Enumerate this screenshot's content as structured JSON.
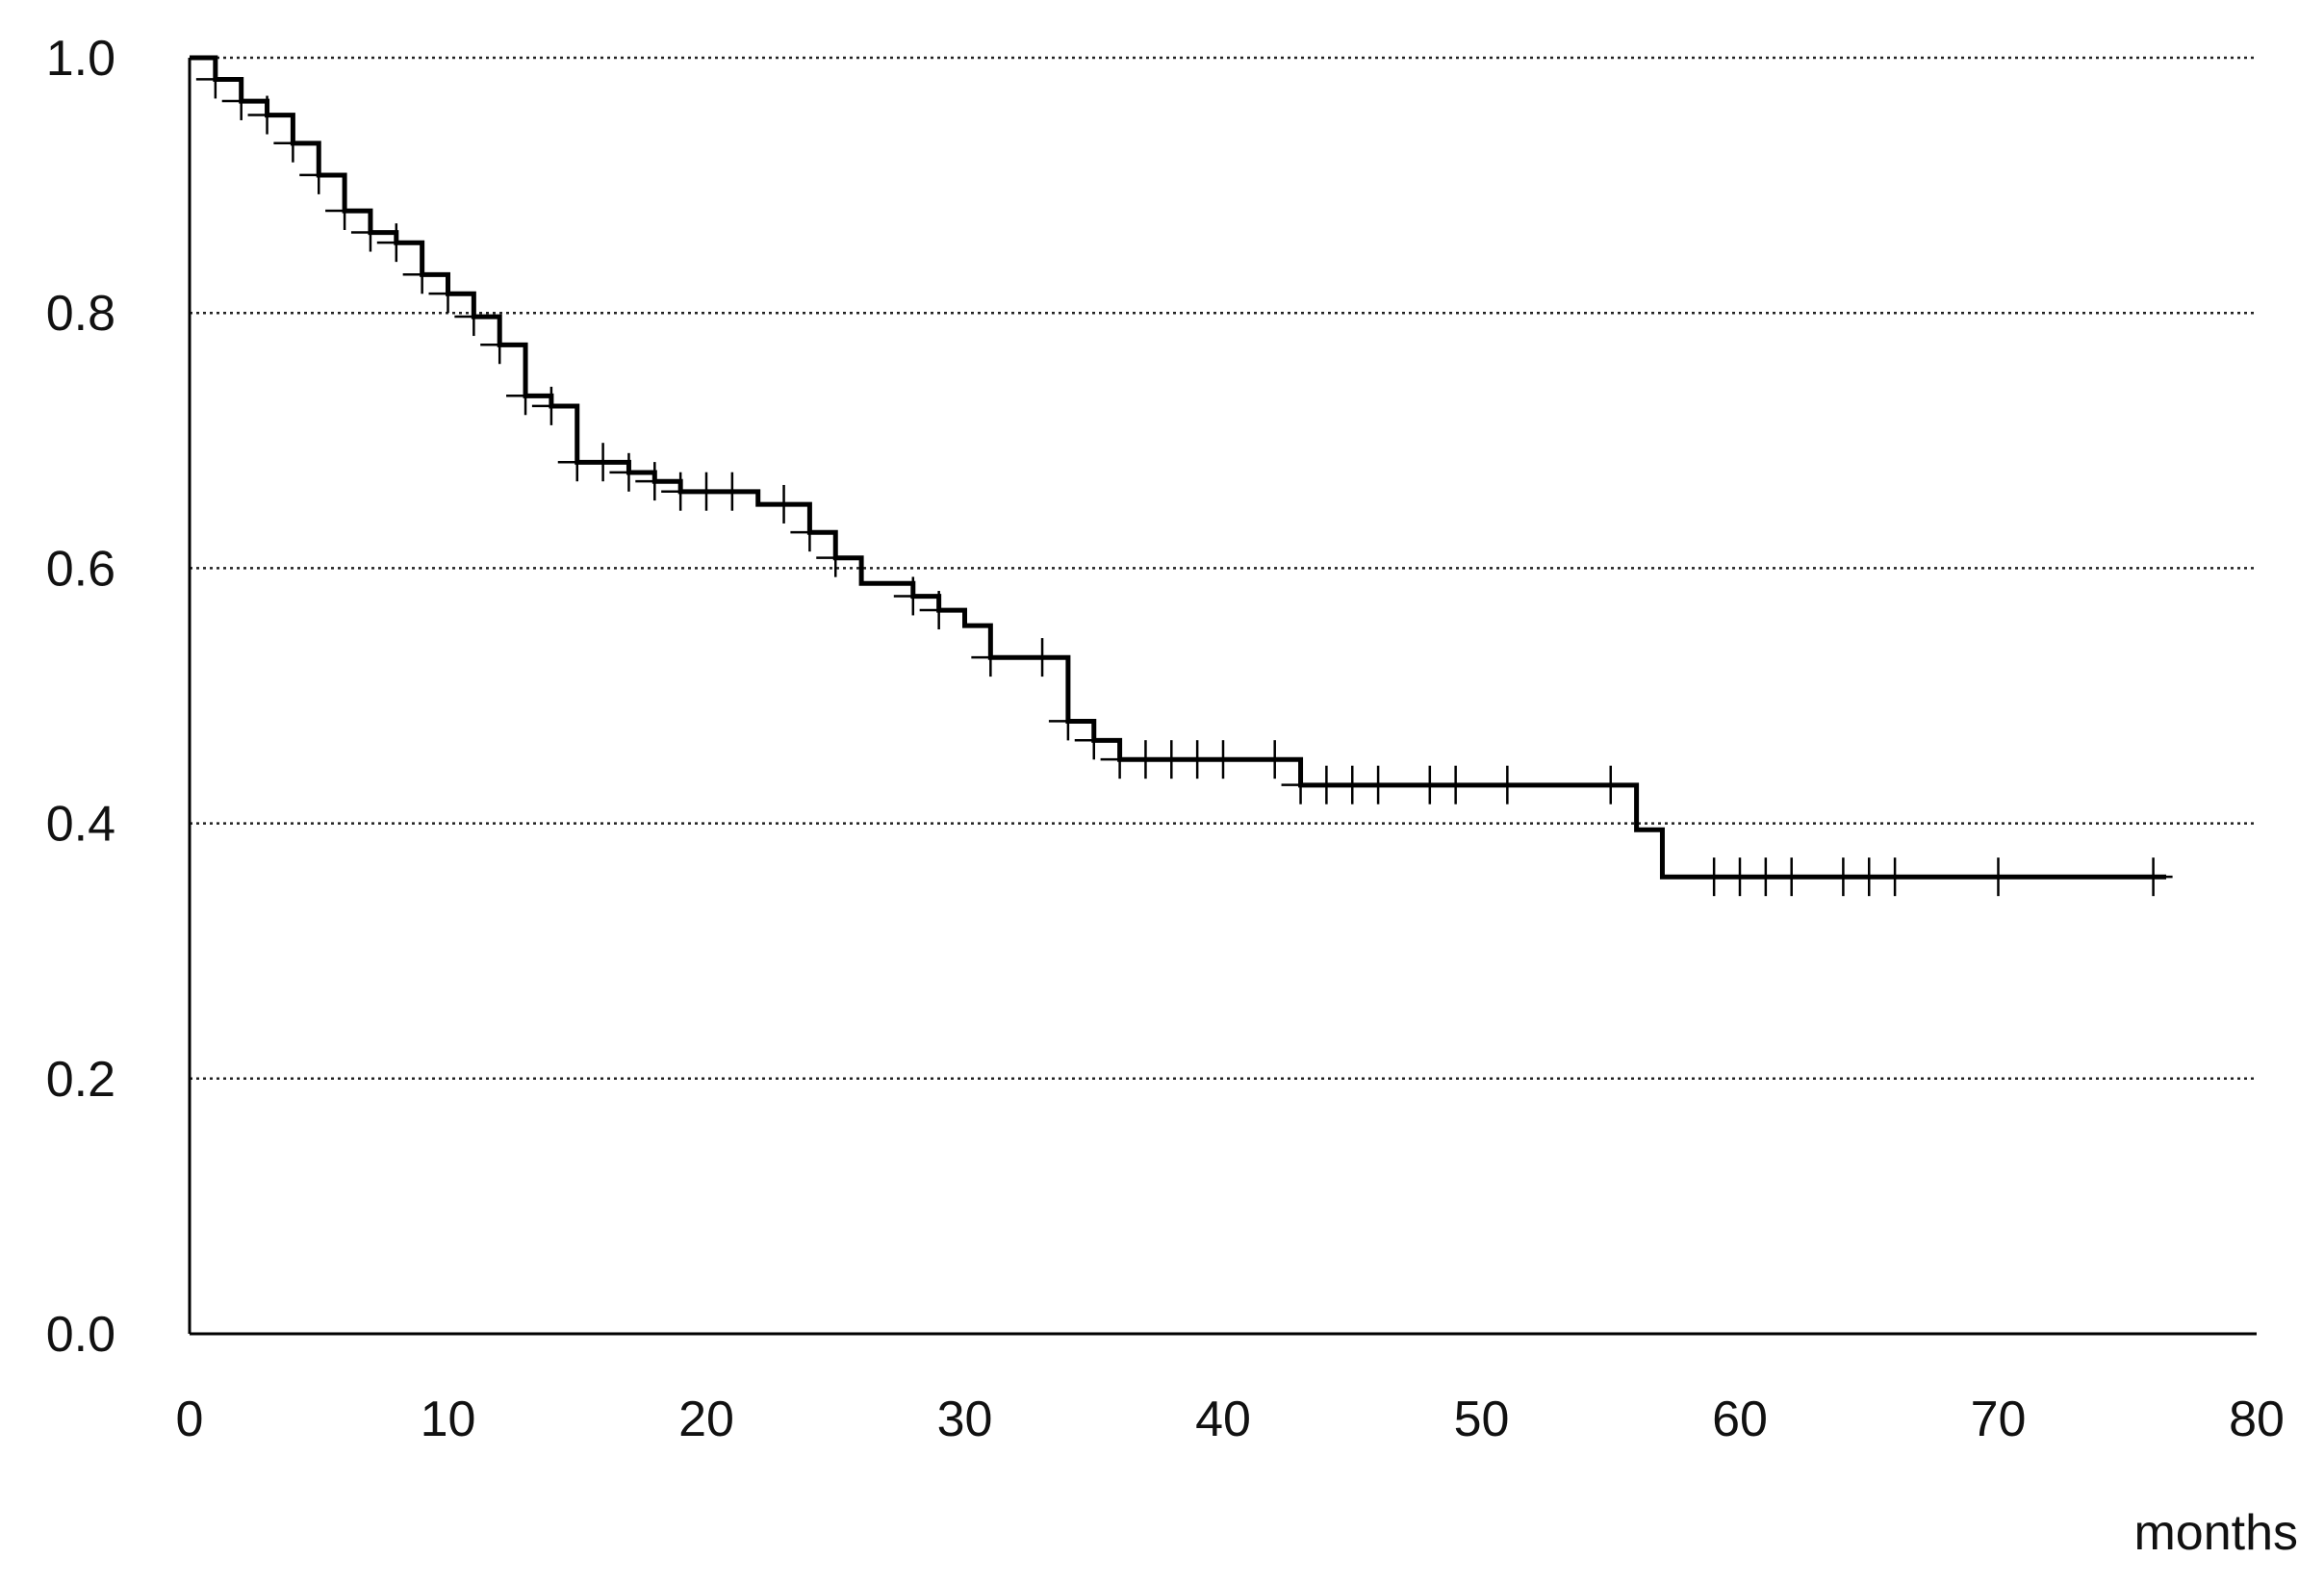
{
  "chart_data": {
    "type": "line",
    "subtype": "kaplan-meier-step",
    "title": "",
    "xlabel": "months",
    "ylabel": "",
    "xlim": [
      0,
      80
    ],
    "ylim": [
      0,
      1.0
    ],
    "x_ticks": [
      "0",
      "10",
      "20",
      "30",
      "40",
      "50",
      "60",
      "70",
      "80"
    ],
    "y_ticks": [
      "0.0",
      "0.2",
      "0.4",
      "0.6",
      "0.8",
      "1.0"
    ],
    "grid": "horizontal dotted",
    "line_color": "#000000",
    "steps": [
      [
        0,
        1.0
      ],
      [
        1,
        0.983
      ],
      [
        2,
        0.966
      ],
      [
        3,
        0.955
      ],
      [
        4,
        0.933
      ],
      [
        5,
        0.908
      ],
      [
        6,
        0.88
      ],
      [
        7,
        0.863
      ],
      [
        8,
        0.855
      ],
      [
        9,
        0.83
      ],
      [
        10,
        0.815
      ],
      [
        11,
        0.797
      ],
      [
        12,
        0.775
      ],
      [
        13,
        0.735
      ],
      [
        14,
        0.727
      ],
      [
        15,
        0.683
      ],
      [
        17,
        0.675
      ],
      [
        18,
        0.668
      ],
      [
        19,
        0.66
      ],
      [
        22,
        0.65
      ],
      [
        24,
        0.628
      ],
      [
        25,
        0.608
      ],
      [
        26,
        0.588
      ],
      [
        28,
        0.578
      ],
      [
        29,
        0.567
      ],
      [
        30,
        0.555
      ],
      [
        31,
        0.53
      ],
      [
        34,
        0.48
      ],
      [
        35,
        0.465
      ],
      [
        36,
        0.45
      ],
      [
        43,
        0.43
      ],
      [
        56,
        0.395
      ],
      [
        57,
        0.358
      ],
      [
        76.5,
        0.358
      ]
    ],
    "censored_times": [
      1,
      2,
      3,
      4,
      5,
      6,
      7,
      8,
      9,
      10,
      11,
      12,
      13,
      14,
      15,
      16,
      17,
      18,
      19,
      20,
      21,
      23,
      24,
      25,
      28,
      29,
      31,
      33,
      34,
      35,
      36,
      37,
      38,
      39,
      40,
      42,
      43,
      44,
      45,
      46,
      48,
      49,
      51,
      55,
      59,
      60,
      61,
      62,
      64,
      65,
      66,
      70,
      76
    ]
  }
}
